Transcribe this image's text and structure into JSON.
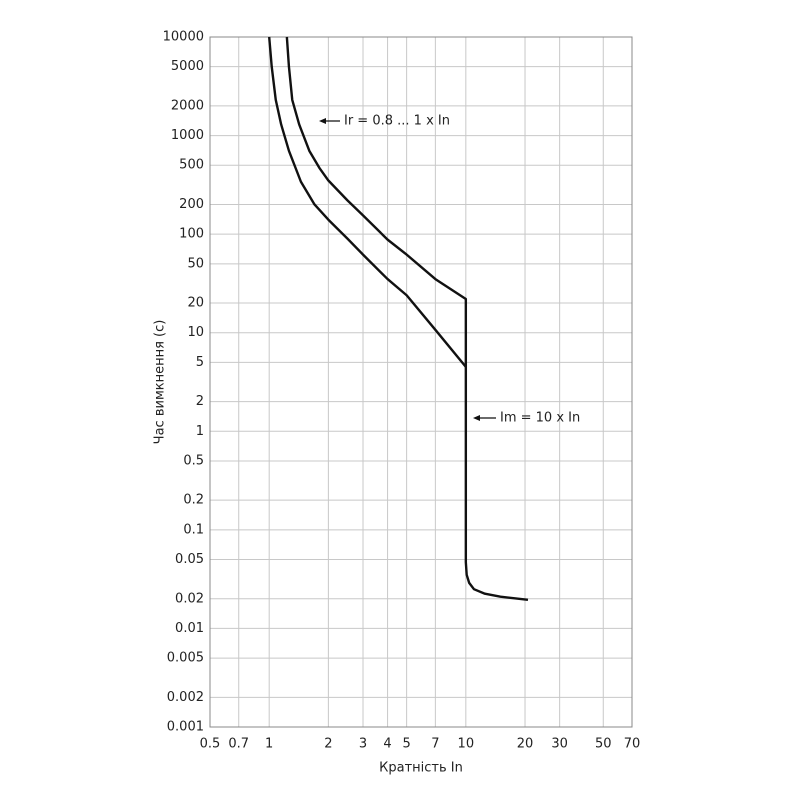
{
  "chart_data": {
    "type": "line",
    "x_label": "Кратність In",
    "y_label": "Час вимкнення (с)",
    "x_log": true,
    "y_log": true,
    "grid": true,
    "xlim": [
      0.5,
      70
    ],
    "ylim": [
      0.001,
      10000
    ],
    "xticks": [
      0.5,
      0.7,
      1,
      2,
      3,
      4,
      5,
      7,
      10,
      20,
      30,
      50,
      70
    ],
    "yticks": [
      0.001,
      0.002,
      0.005,
      0.01,
      0.02,
      0.05,
      0.1,
      0.2,
      0.5,
      1,
      2,
      5,
      10,
      20,
      50,
      100,
      200,
      500,
      1000,
      2000,
      5000,
      10000
    ],
    "annotations": [
      "Ir = 0.8 ... 1 x In",
      "Im = 10 x In"
    ],
    "series": [
      {
        "color": "#111111",
        "x": [
          1.0,
          1.03,
          1.08,
          1.15,
          1.26,
          1.45,
          1.7,
          2,
          2.5,
          3,
          4,
          5,
          7,
          10
        ],
        "values": [
          10000,
          5000,
          2300,
          1300,
          700,
          340,
          200,
          140,
          90,
          62,
          35,
          24,
          10.7,
          4.5
        ]
      },
      {
        "color": "#111111",
        "x": [
          1.23,
          1.26,
          1.31,
          1.42,
          1.6,
          1.8,
          2,
          2.5,
          3,
          4,
          5,
          7,
          10,
          10,
          10.1,
          10.4,
          11,
          12.5,
          15,
          20.7
        ],
        "values": [
          10000,
          5000,
          2300,
          1300,
          700,
          470,
          350,
          220,
          155,
          88,
          62,
          35,
          22,
          0.047,
          0.035,
          0.029,
          0.025,
          0.0225,
          0.021,
          0.0195
        ]
      }
    ]
  }
}
